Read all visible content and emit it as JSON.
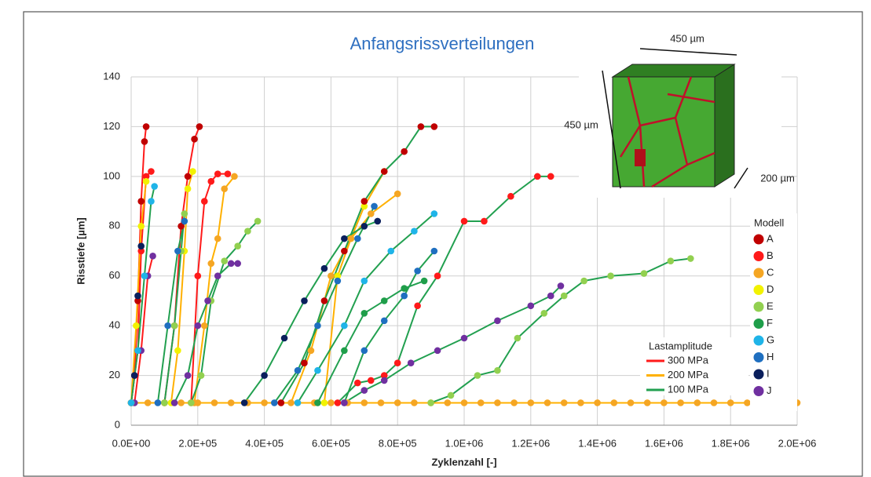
{
  "chart_data": {
    "type": "line",
    "title": "Anfangsrissverteilungen",
    "x_label": "Zyklenzahl [-]",
    "y_label": "Risstiefe [µm]",
    "xlim": [
      0,
      2000000
    ],
    "ylim": [
      0,
      140
    ],
    "xticks": [
      {
        "value": 0,
        "label": "0.0E+00"
      },
      {
        "value": 200000,
        "label": "2.0E+05"
      },
      {
        "value": 400000,
        "label": "4.0E+05"
      },
      {
        "value": 600000,
        "label": "6.0E+05"
      },
      {
        "value": 800000,
        "label": "8.0E+05"
      },
      {
        "value": 1000000,
        "label": "1.0E+06"
      },
      {
        "value": 1200000,
        "label": "1.2E+06"
      },
      {
        "value": 1400000,
        "label": "1.4E+06"
      },
      {
        "value": 1600000,
        "label": "1.6E+06"
      },
      {
        "value": 1800000,
        "label": "1.8E+06"
      },
      {
        "value": 2000000,
        "label": "2.0E+06"
      }
    ],
    "yticks": [
      0,
      20,
      40,
      60,
      80,
      100,
      120,
      140
    ],
    "grid": true,
    "model_legend": {
      "title": "Modell",
      "items": [
        {
          "name": "A",
          "color": "#c00000"
        },
        {
          "name": "B",
          "color": "#ff1a1a"
        },
        {
          "name": "C",
          "color": "#f5a623"
        },
        {
          "name": "D",
          "color": "#f2f200"
        },
        {
          "name": "E",
          "color": "#92d050"
        },
        {
          "name": "F",
          "color": "#1f9e4a"
        },
        {
          "name": "G",
          "color": "#1fb4e8"
        },
        {
          "name": "H",
          "color": "#1f6fc0"
        },
        {
          "name": "I",
          "color": "#0a1f5c"
        },
        {
          "name": "J",
          "color": "#7030a0"
        }
      ]
    },
    "amplitude_legend": {
      "title": "Lastamplitude",
      "items": [
        {
          "name": "300 MPa",
          "color": "#ff1a1a"
        },
        {
          "name": "200 MPa",
          "color": "#ffb000"
        },
        {
          "name": "100 MPa",
          "color": "#22a050"
        }
      ]
    },
    "inset_labels": [
      "450 µm",
      "450 µm",
      "200 µm"
    ],
    "series": [
      {
        "color": "#c00000",
        "line_color": "#ff1a1a",
        "x": [
          0,
          10000,
          20000,
          30000,
          40000,
          45000
        ],
        "values": [
          9,
          20,
          50,
          90,
          114,
          120
        ]
      },
      {
        "color": "#ff1a1a",
        "line_color": "#ff1a1a",
        "x": [
          0,
          20000,
          30000,
          45000,
          60000
        ],
        "values": [
          9,
          30,
          70,
          100,
          102
        ]
      },
      {
        "color": "#c00000",
        "line_color": "#ff1a1a",
        "x": [
          100000,
          130000,
          150000,
          170000,
          190000,
          205000
        ],
        "values": [
          9,
          40,
          80,
          100,
          115,
          120
        ]
      },
      {
        "color": "#ff1a1a",
        "line_color": "#ff1a1a",
        "x": [
          180000,
          200000,
          220000,
          240000,
          260000,
          290000
        ],
        "values": [
          9,
          60,
          90,
          98,
          101,
          101
        ]
      },
      {
        "color": "#0a1f5c",
        "line_color": "#ff1a1a",
        "x": [
          0,
          10000,
          20000,
          30000
        ],
        "values": [
          9,
          20,
          52,
          72
        ]
      },
      {
        "color": "#7030a0",
        "line_color": "#ff1a1a",
        "x": [
          10000,
          30000,
          50000,
          65000
        ],
        "values": [
          9,
          30,
          60,
          68
        ]
      },
      {
        "color": "#f5a623",
        "line_color": "#ffb000",
        "x": [
          0,
          50000,
          100000,
          150000,
          200000,
          250000,
          300000,
          350000,
          400000,
          450000,
          500000,
          550000,
          600000,
          650000,
          700000,
          750000,
          800000,
          850000,
          900000,
          950000,
          1000000,
          1050000,
          1100000,
          1150000,
          1200000,
          1250000,
          1300000,
          1350000,
          1400000,
          1450000,
          1500000,
          1550000,
          1600000,
          1650000,
          1700000,
          1750000,
          1800000,
          1850000,
          1900000,
          1950000,
          2000000
        ],
        "values": [
          9,
          9,
          9,
          9,
          9,
          9,
          9,
          9,
          9,
          9,
          9,
          9,
          9,
          9,
          9,
          9,
          9,
          9,
          9,
          9,
          9,
          9,
          9,
          9,
          9,
          9,
          9,
          9,
          9,
          9,
          9,
          9,
          9,
          9,
          9,
          9,
          9,
          9,
          9,
          9,
          9
        ]
      },
      {
        "color": "#f2f200",
        "line_color": "#ffb000",
        "x": [
          0,
          15000,
          30000,
          45000
        ],
        "values": [
          9,
          40,
          80,
          98
        ]
      },
      {
        "color": "#f5a623",
        "line_color": "#ffb000",
        "x": [
          190000,
          220000,
          240000,
          260000,
          280000,
          310000
        ],
        "values": [
          9,
          40,
          65,
          75,
          95,
          100
        ]
      },
      {
        "color": "#f2f200",
        "line_color": "#ffb000",
        "x": [
          120000,
          140000,
          160000,
          170000,
          185000
        ],
        "values": [
          9,
          30,
          70,
          95,
          102
        ]
      },
      {
        "color": "#f2f200",
        "line_color": "#ffb000",
        "x": [
          580000,
          620000,
          660000,
          700000,
          760000
        ],
        "values": [
          9,
          60,
          75,
          88,
          102
        ]
      },
      {
        "color": "#f5a623",
        "line_color": "#ffb000",
        "x": [
          480000,
          540000,
          600000,
          660000,
          720000,
          800000
        ],
        "values": [
          9,
          30,
          60,
          75,
          85,
          93
        ]
      },
      {
        "color": "#1fb4e8",
        "line_color": "#22a050",
        "x": [
          0,
          20000,
          40000,
          60000,
          70000
        ],
        "values": [
          9,
          30,
          60,
          90,
          96
        ]
      },
      {
        "color": "#92d050",
        "line_color": "#22a050",
        "x": [
          180000,
          210000,
          240000,
          280000,
          320000,
          350000,
          380000
        ],
        "values": [
          9,
          20,
          50,
          66,
          72,
          78,
          82
        ]
      },
      {
        "color": "#92d050",
        "line_color": "#22a050",
        "x": [
          100000,
          130000,
          150000,
          160000
        ],
        "values": [
          9,
          40,
          70,
          85
        ]
      },
      {
        "color": "#1f6fc0",
        "line_color": "#22a050",
        "x": [
          80000,
          110000,
          140000,
          160000
        ],
        "values": [
          9,
          40,
          70,
          82
        ]
      },
      {
        "color": "#7030a0",
        "line_color": "#22a050",
        "x": [
          130000,
          170000,
          200000,
          230000,
          260000,
          300000,
          320000
        ],
        "values": [
          9,
          20,
          40,
          50,
          60,
          65,
          65
        ]
      },
      {
        "color": "#c00000",
        "line_color": "#22a050",
        "x": [
          450000,
          520000,
          580000,
          640000,
          700000,
          760000,
          820000,
          870000,
          910000
        ],
        "values": [
          9,
          25,
          50,
          70,
          90,
          102,
          110,
          120,
          120
        ]
      },
      {
        "color": "#0a1f5c",
        "line_color": "#22a050",
        "x": [
          340000,
          400000,
          460000,
          520000,
          580000,
          640000,
          700000,
          740000
        ],
        "values": [
          9,
          20,
          35,
          50,
          63,
          75,
          80,
          82
        ]
      },
      {
        "color": "#1f6fc0",
        "line_color": "#22a050",
        "x": [
          430000,
          500000,
          560000,
          620000,
          680000,
          730000
        ],
        "values": [
          9,
          22,
          40,
          58,
          75,
          88
        ]
      },
      {
        "color": "#1fb4e8",
        "line_color": "#22a050",
        "x": [
          500000,
          560000,
          640000,
          700000,
          780000,
          850000,
          910000
        ],
        "values": [
          9,
          22,
          40,
          58,
          70,
          78,
          85
        ]
      },
      {
        "color": "#1f9e4a",
        "line_color": "#22a050",
        "x": [
          560000,
          640000,
          700000,
          760000,
          820000,
          880000
        ],
        "values": [
          9,
          30,
          45,
          50,
          55,
          58
        ]
      },
      {
        "color": "#1f6fc0",
        "line_color": "#22a050",
        "x": [
          640000,
          700000,
          760000,
          820000,
          860000,
          910000
        ],
        "values": [
          9,
          30,
          42,
          52,
          62,
          70
        ]
      },
      {
        "color": "#ff1a1a",
        "line_color": "#22a050",
        "x": [
          620000,
          680000,
          720000,
          760000,
          800000,
          860000,
          920000,
          1000000,
          1060000,
          1140000,
          1220000,
          1260000
        ],
        "values": [
          9,
          17,
          18,
          20,
          25,
          48,
          60,
          82,
          82,
          92,
          100,
          100
        ]
      },
      {
        "color": "#7030a0",
        "line_color": "#22a050",
        "x": [
          640000,
          700000,
          760000,
          840000,
          920000,
          1000000,
          1100000,
          1200000,
          1260000,
          1290000
        ],
        "values": [
          9,
          14,
          18,
          25,
          30,
          35,
          42,
          48,
          52,
          56
        ]
      },
      {
        "color": "#92d050",
        "line_color": "#22a050",
        "x": [
          900000,
          960000,
          1040000,
          1100000,
          1160000,
          1240000,
          1300000,
          1360000,
          1440000,
          1540000,
          1620000,
          1680000
        ],
        "values": [
          9,
          12,
          20,
          22,
          35,
          45,
          52,
          58,
          60,
          61,
          66,
          67
        ]
      }
    ]
  }
}
